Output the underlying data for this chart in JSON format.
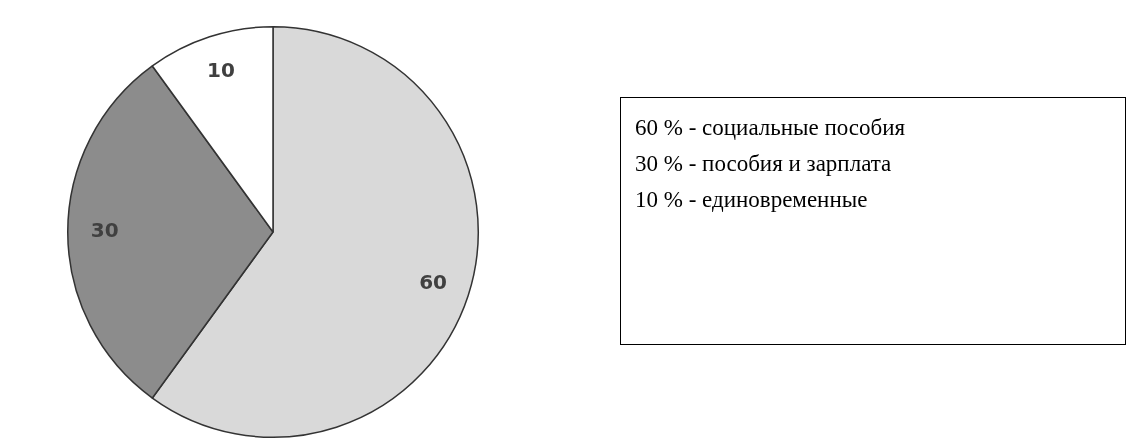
{
  "chart_data": {
    "type": "pie",
    "categories": [
      null,
      null,
      null
    ],
    "values": [
      60,
      30,
      10
    ],
    "colors": [
      "#d9d9d9",
      "#8c8c8c",
      "#ffffff"
    ],
    "data_labels": true,
    "annotations": [
      "60 % - социальные пособия",
      "30 % - пособия и зарплата",
      "10 % - единовременные"
    ]
  }
}
